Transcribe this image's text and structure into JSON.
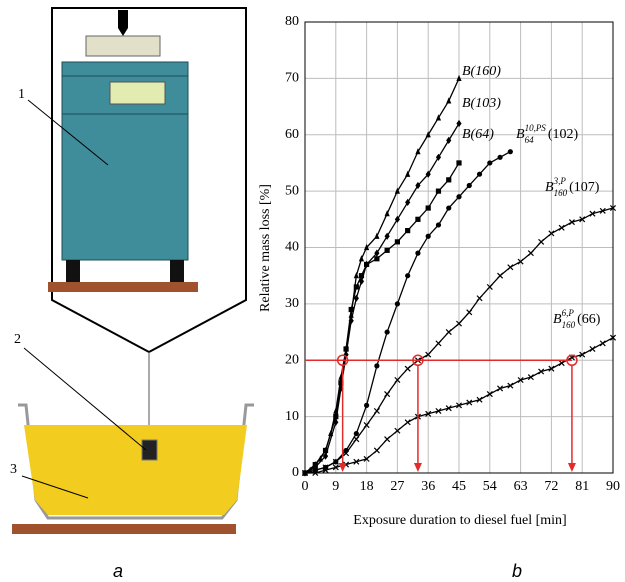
{
  "diagram": {
    "labels": [
      "1",
      "2",
      "3"
    ],
    "caption": "a"
  },
  "chart_data": {
    "type": "line",
    "caption": "b",
    "xlabel": "Exposure duration to diesel fuel [min]",
    "ylabel": "Relative mass loss [%]",
    "xlim": [
      0,
      90
    ],
    "ylim": [
      0,
      80
    ],
    "xticks": [
      0,
      9,
      18,
      27,
      36,
      45,
      54,
      63,
      72,
      81,
      90
    ],
    "yticks": [
      0,
      10,
      20,
      30,
      40,
      50,
      60,
      70,
      80
    ],
    "grid": true,
    "threshold": {
      "color": "#e32b2b",
      "y": 20,
      "x": [
        11,
        33,
        78
      ]
    },
    "series": [
      {
        "name": "B(160)",
        "color": "#000000",
        "marker": "triangle",
        "x": [
          0,
          1.5,
          3,
          4.5,
          6,
          7.5,
          9,
          10.5,
          12,
          13.5,
          15,
          16.5,
          18,
          21,
          24,
          27,
          30,
          33,
          36,
          39,
          42,
          45
        ],
        "values": [
          0,
          0.5,
          1.5,
          2.5,
          4,
          7,
          11,
          17,
          22,
          28,
          35,
          38,
          40,
          42,
          46,
          50,
          53,
          57,
          60,
          63,
          66,
          70
        ]
      },
      {
        "name": "B(103)",
        "color": "#000000",
        "marker": "diamond",
        "x": [
          0,
          3,
          6,
          9,
          10.5,
          12,
          13.5,
          15,
          16.5,
          18,
          21,
          24,
          27,
          30,
          33,
          36,
          39,
          42,
          45
        ],
        "values": [
          0,
          1,
          3,
          9,
          15,
          21,
          27,
          31,
          34,
          37,
          39,
          42,
          45,
          48,
          51,
          53,
          56,
          59,
          62
        ]
      },
      {
        "name": "B(64)",
        "color": "#000000",
        "marker": "square",
        "x": [
          0,
          3,
          6,
          9,
          10.5,
          12,
          13.5,
          15,
          16.5,
          18,
          21,
          24,
          27,
          30,
          33,
          36,
          39,
          42,
          45
        ],
        "values": [
          0,
          1.5,
          4,
          10,
          16,
          22,
          29,
          33,
          35,
          37,
          38,
          39.5,
          41,
          43,
          45,
          47,
          50,
          52,
          55
        ]
      },
      {
        "name": {
          "base": "B",
          "sub": "64",
          "sup": "10,PS",
          "tail": "(102)"
        },
        "color": "#000000",
        "marker": "circle",
        "x": [
          0,
          3,
          6,
          9,
          12,
          15,
          18,
          21,
          24,
          27,
          30,
          33,
          36,
          39,
          42,
          45,
          48,
          51,
          54,
          57,
          60
        ],
        "values": [
          0,
          0.5,
          1,
          2,
          4,
          7,
          12,
          19,
          25,
          30,
          35,
          39,
          42,
          44,
          47,
          49,
          51,
          53,
          55,
          56,
          57
        ]
      },
      {
        "name": {
          "base": "B",
          "sub": "160",
          "sup": "3,P",
          "tail": "(107)"
        },
        "color": "#000000",
        "marker": "x",
        "x": [
          0,
          3,
          6,
          9,
          12,
          15,
          18,
          21,
          24,
          27,
          30,
          33,
          36,
          39,
          42,
          45,
          48,
          51,
          54,
          57,
          60,
          63,
          66,
          69,
          72,
          75,
          78,
          81,
          84,
          87,
          90
        ],
        "values": [
          0,
          0.5,
          1,
          2,
          3.5,
          6,
          8.5,
          11,
          14,
          16.5,
          18.5,
          20,
          21,
          23,
          25,
          26.5,
          28.5,
          31,
          33,
          35,
          36.5,
          37.5,
          39,
          41,
          42.5,
          43.5,
          44.5,
          45,
          46,
          46.5,
          47
        ]
      },
      {
        "name": {
          "base": "B",
          "sub": "160",
          "sup": "6,P",
          "tail": "(66)"
        },
        "color": "#000000",
        "marker": "x",
        "x": [
          0,
          3,
          6,
          9,
          12,
          15,
          18,
          21,
          24,
          27,
          30,
          33,
          36,
          39,
          42,
          45,
          48,
          51,
          54,
          57,
          60,
          63,
          66,
          69,
          72,
          75,
          78,
          81,
          84,
          87,
          90
        ],
        "values": [
          0,
          0,
          0.5,
          1,
          1.5,
          2,
          2.5,
          4,
          6,
          7.5,
          9,
          10,
          10.5,
          11,
          11.5,
          12,
          12.5,
          13,
          14,
          15,
          15.5,
          16.5,
          17,
          18,
          18.5,
          19.5,
          20.5,
          21,
          22,
          23,
          24
        ]
      }
    ]
  }
}
